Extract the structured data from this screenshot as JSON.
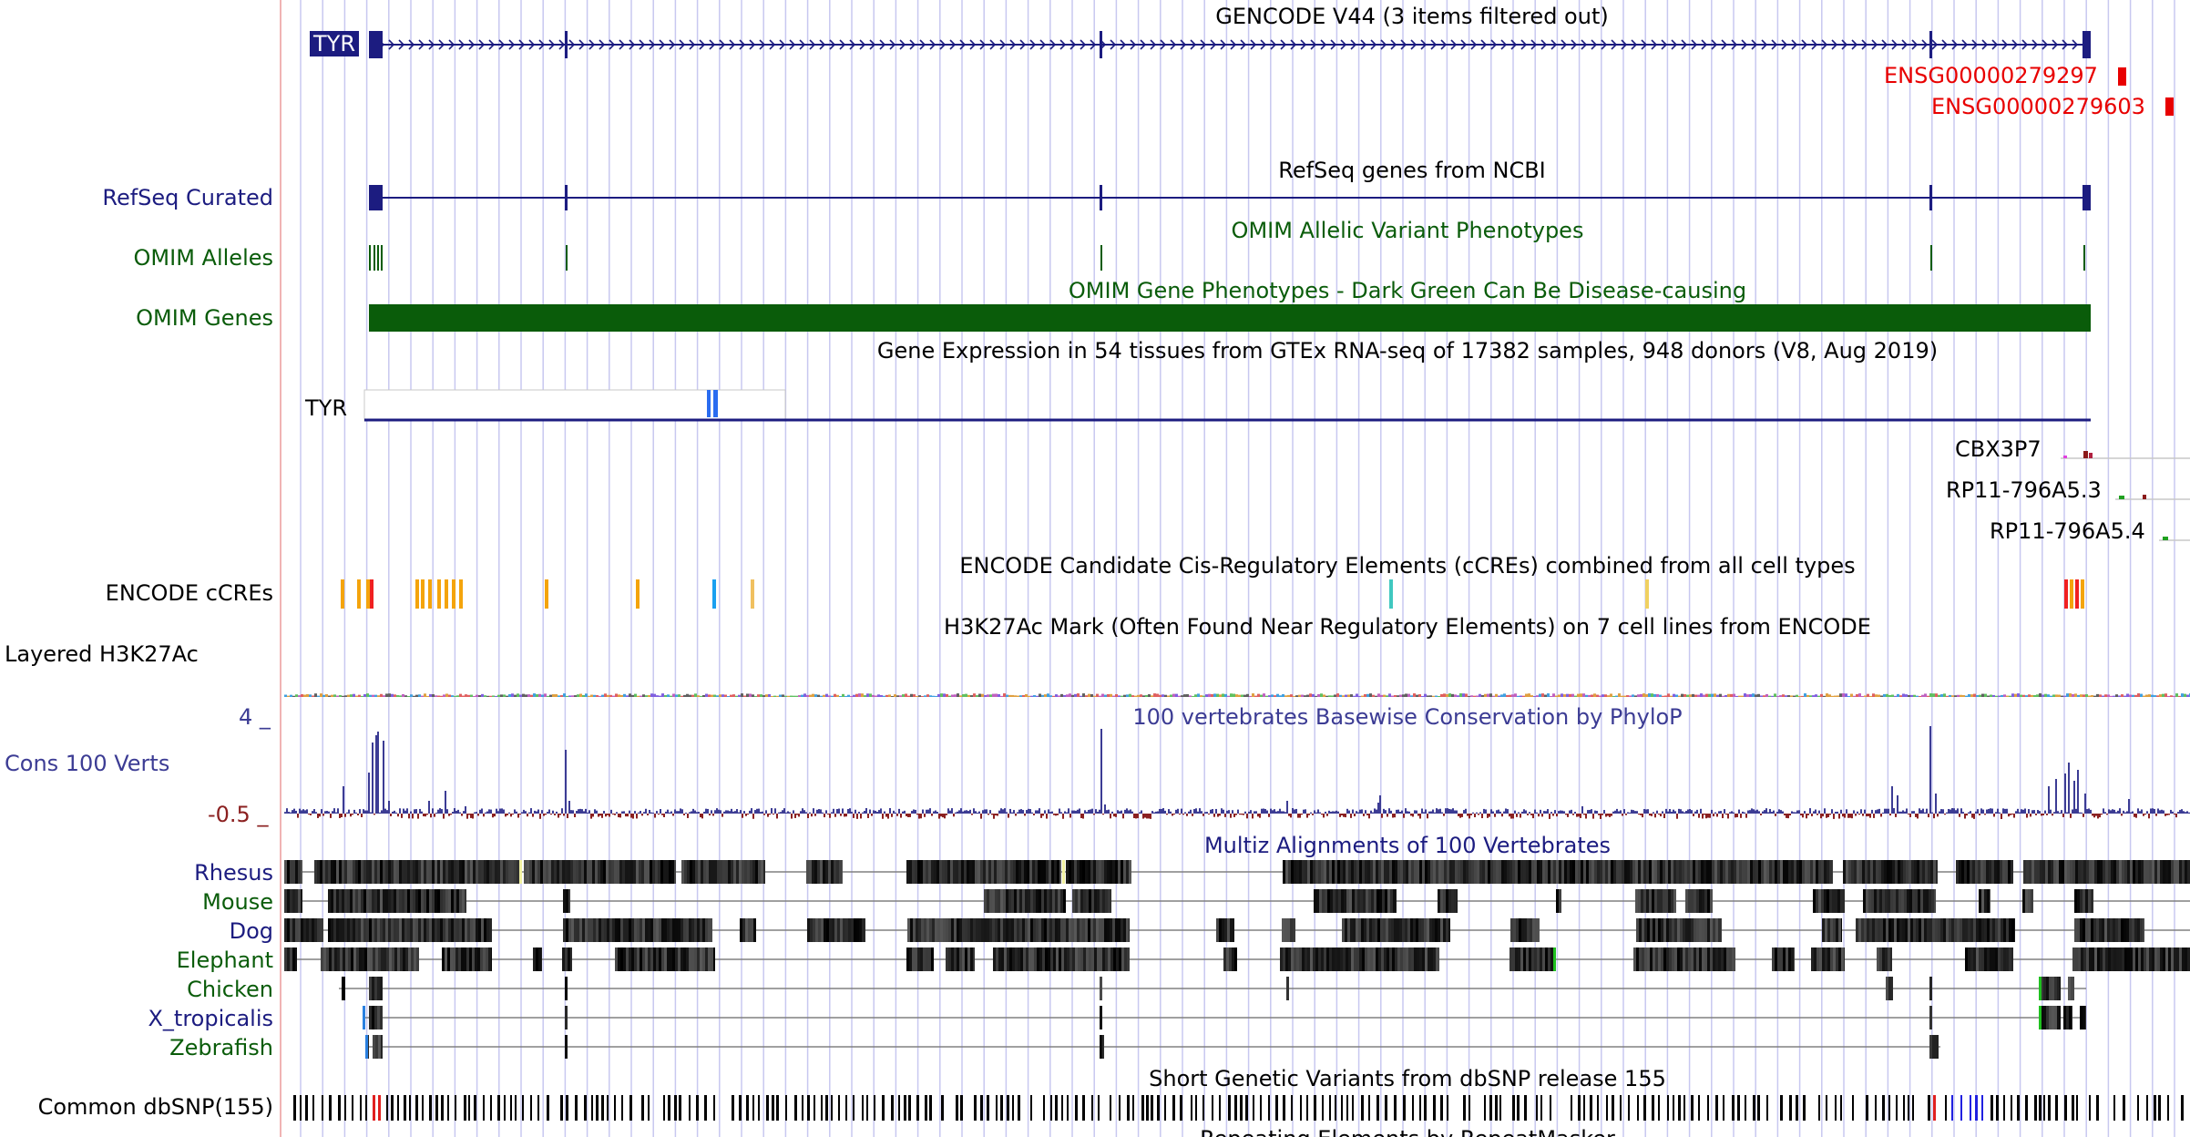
{
  "colors": {
    "gene_blue": "#1c1c80",
    "ensg_red": "#e80000",
    "omim_green": "#0a5c0a",
    "cons_purple": "#3c3c94",
    "cons_neg_red": "#8b2020",
    "ccre_orange": "#f4a40c",
    "ccre_red": "#f02020",
    "ccre_blue": "#1aa0f0",
    "snp_black": "#000000",
    "snp_red": "#e02020",
    "snp_green": "#20a020",
    "snp_blue": "#2020e0",
    "gtex_blue": "#2a6cf0",
    "guide_line": "#c8c8f0",
    "margin_line": "#f0b4b4"
  },
  "tracks": {
    "gencode": {
      "title": "GENCODE V44 (3 items filtered out)",
      "gene_label": "TYR",
      "alt_genes": [
        "ENSG00000279297",
        "ENSG00000279603"
      ]
    },
    "refseq": {
      "side_label": "RefSeq Curated",
      "title": "RefSeq genes from NCBI"
    },
    "omim_alleles": {
      "side_label": "OMIM Alleles",
      "title": "OMIM Allelic Variant Phenotypes"
    },
    "omim_genes": {
      "side_label": "OMIM Genes",
      "title": "OMIM Gene Phenotypes - Dark Green Can Be Disease-causing"
    },
    "gtex": {
      "title": "Gene Expression in 54 tissues from GTEx RNA-seq of 17382 samples, 948 donors (V8, Aug 2019)",
      "gene_label": "TYR",
      "other_genes": [
        "CBX3P7",
        "RP11-796A5.3",
        "RP11-796A5.4"
      ]
    },
    "encode_ccres": {
      "side_label": "ENCODE cCREs",
      "title": "ENCODE Candidate Cis-Regulatory Elements (cCREs) combined from all cell types"
    },
    "h3k27ac": {
      "side_label": "Layered H3K27Ac",
      "title": "H3K27Ac Mark (Often Found Near Regulatory Elements) on 7 cell lines from ENCODE"
    },
    "cons100": {
      "side_label": "Cons 100 Verts",
      "title": "100 vertebrates Basewise Conservation by PhyloP",
      "y_max": "4 _",
      "y_min": "-0.5 _"
    },
    "multiz": {
      "title": "Multiz Alignments of 100 Vertebrates",
      "species": [
        "Rhesus",
        "Mouse",
        "Dog",
        "Elephant",
        "Chicken",
        "X_tropicalis",
        "Zebrafish"
      ]
    },
    "dbsnp": {
      "side_label": "Common dbSNP(155)",
      "title": "Short Genetic Variants from dbSNP release 155"
    },
    "repeatmasker": {
      "title": "Repeating Elements by RepeatMasker"
    }
  }
}
